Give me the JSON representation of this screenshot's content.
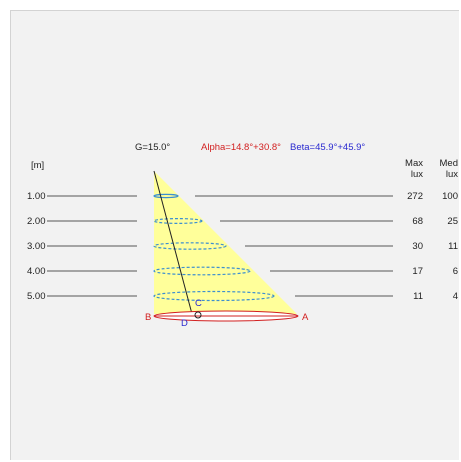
{
  "header": {
    "g_label": "G=15.0°",
    "alpha_label": "Alpha=14.8°+30.8°",
    "beta_label": "Beta=45.9°+45.9°"
  },
  "unit_label": "[m]",
  "columns": {
    "max_line1": "Max",
    "max_line2": "lux",
    "med_line1": "Med",
    "med_line2": "lux"
  },
  "rows": [
    {
      "distance": "1.00",
      "max_lux": "272",
      "med_lux": "100"
    },
    {
      "distance": "2.00",
      "max_lux": "68",
      "med_lux": "25"
    },
    {
      "distance": "3.00",
      "max_lux": "30",
      "med_lux": "11"
    },
    {
      "distance": "4.00",
      "max_lux": "17",
      "med_lux": "6"
    },
    {
      "distance": "5.00",
      "max_lux": "11",
      "med_lux": "4"
    }
  ],
  "points": {
    "a": "A",
    "b": "B",
    "c": "C",
    "d": "D"
  },
  "colors": {
    "background": "#f2f2f2",
    "cone_fill": "#ffff9a",
    "ellipse": "#3c8fd0",
    "alpha": "#d22020",
    "beta": "#2a2ad0",
    "text": "#222222"
  }
}
